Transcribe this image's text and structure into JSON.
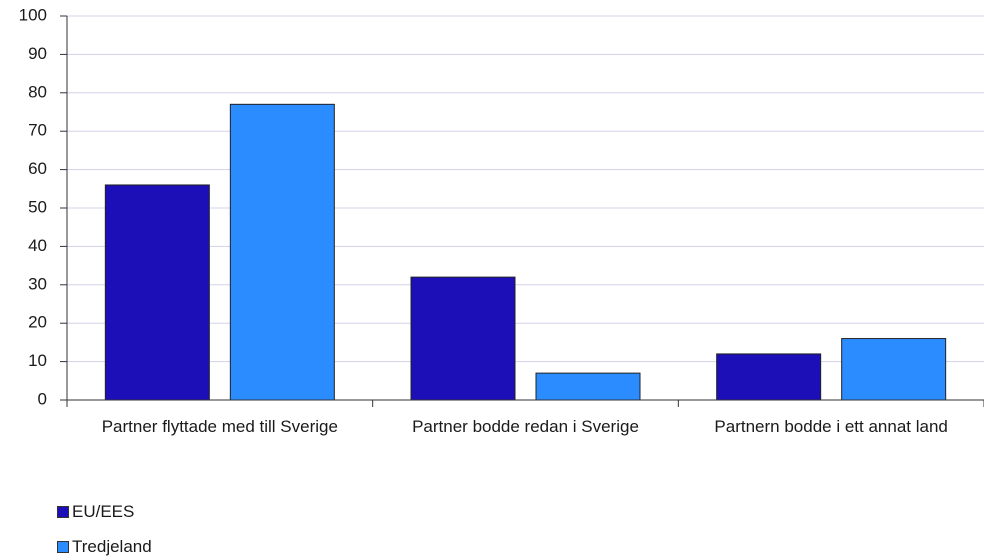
{
  "chart_data": {
    "type": "bar",
    "categories": [
      "Partner flyttade med till Sverige",
      "Partner bodde redan i Sverige",
      "Partnern bodde i ett annat land"
    ],
    "series": [
      {
        "name": "EU/EES",
        "color": "#1d0fb8",
        "values": [
          56,
          32,
          12
        ]
      },
      {
        "name": "Tredjeland",
        "color": "#2a8cff",
        "values": [
          77,
          7,
          16
        ]
      }
    ],
    "ylim": [
      0,
      100
    ],
    "yticks": [
      0,
      10,
      20,
      30,
      40,
      50,
      60,
      70,
      80,
      90,
      100
    ],
    "grid": true
  }
}
